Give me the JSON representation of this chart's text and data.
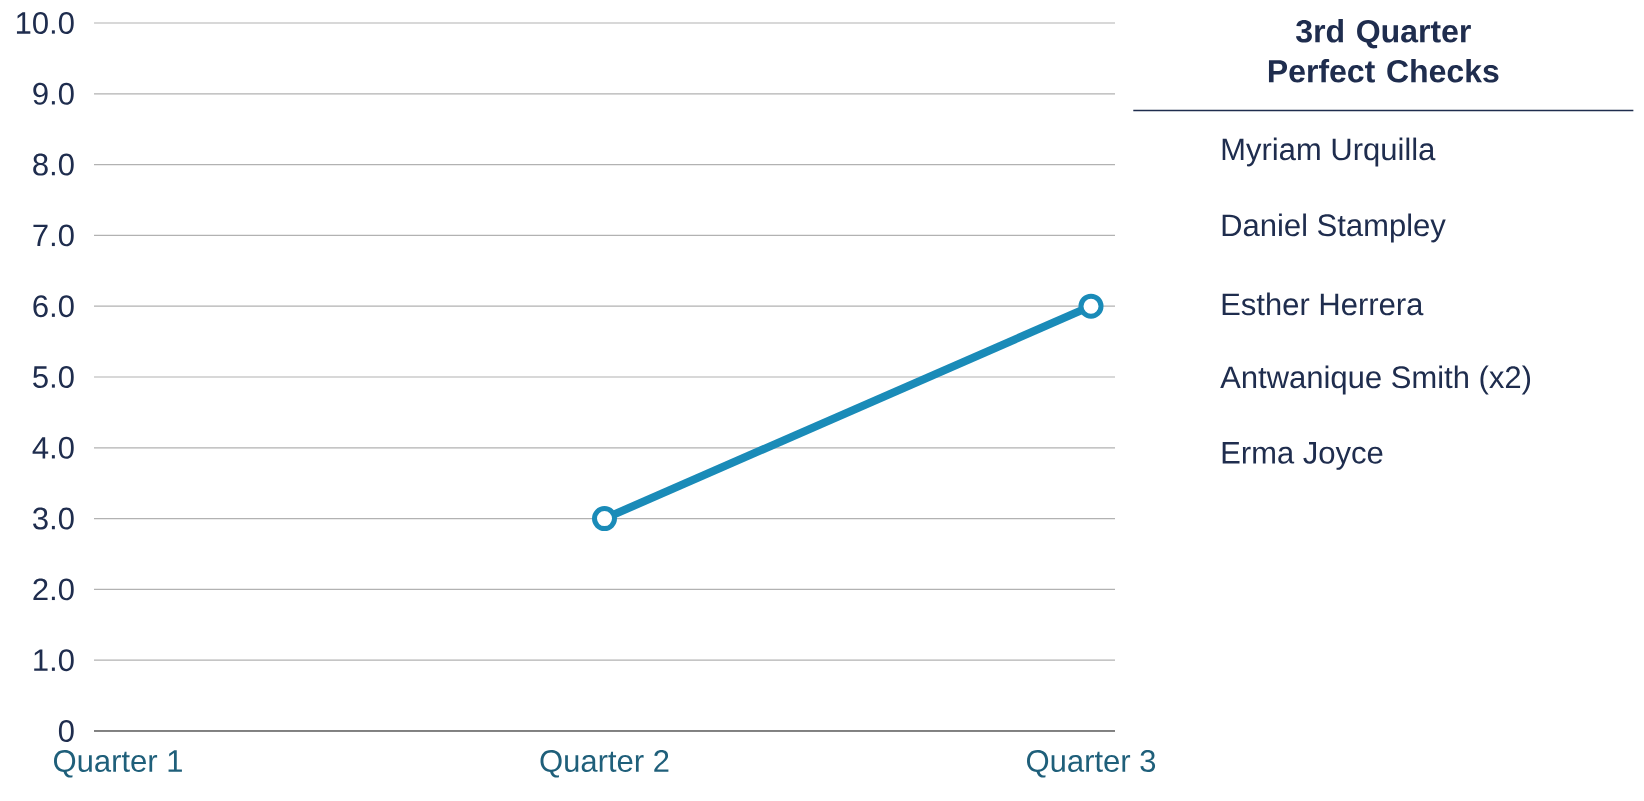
{
  "chart_data": [
    {
      "type": "line",
      "categories": [
        "Quarter 1",
        "Quarter 2",
        "Quarter 3"
      ],
      "series": [
        {
          "color": "#1a8bb8",
          "values": [
            null,
            3.0,
            6.0
          ]
        }
      ],
      "ylim": [
        0,
        10
      ],
      "yticks": [
        0,
        {
          "value": 1,
          "label": "1.0"
        },
        {
          "value": 2,
          "label": "2.0"
        },
        {
          "value": 3,
          "label": "3.0"
        },
        {
          "value": 4,
          "label": "4.0"
        },
        {
          "value": 5,
          "label": "5.0"
        },
        {
          "value": 6,
          "label": "6.0"
        },
        {
          "value": 7,
          "label": "7.0"
        },
        {
          "value": 8,
          "label": "8.0"
        },
        {
          "value": 9,
          "label": "9.0"
        },
        {
          "value": 10,
          "label": "10.0"
        }
      ],
      "grid": "y",
      "marker": "circle"
    },
    {
      "type": "other",
      "title": "3rd Quarter Perfect Checks",
      "annotations": [
        "Myriam Urquilla",
        "Daniel Stampley",
        "Esther Herrera",
        "Antwanique Smith (x2)",
        "Erma Joyce"
      ]
    }
  ]
}
